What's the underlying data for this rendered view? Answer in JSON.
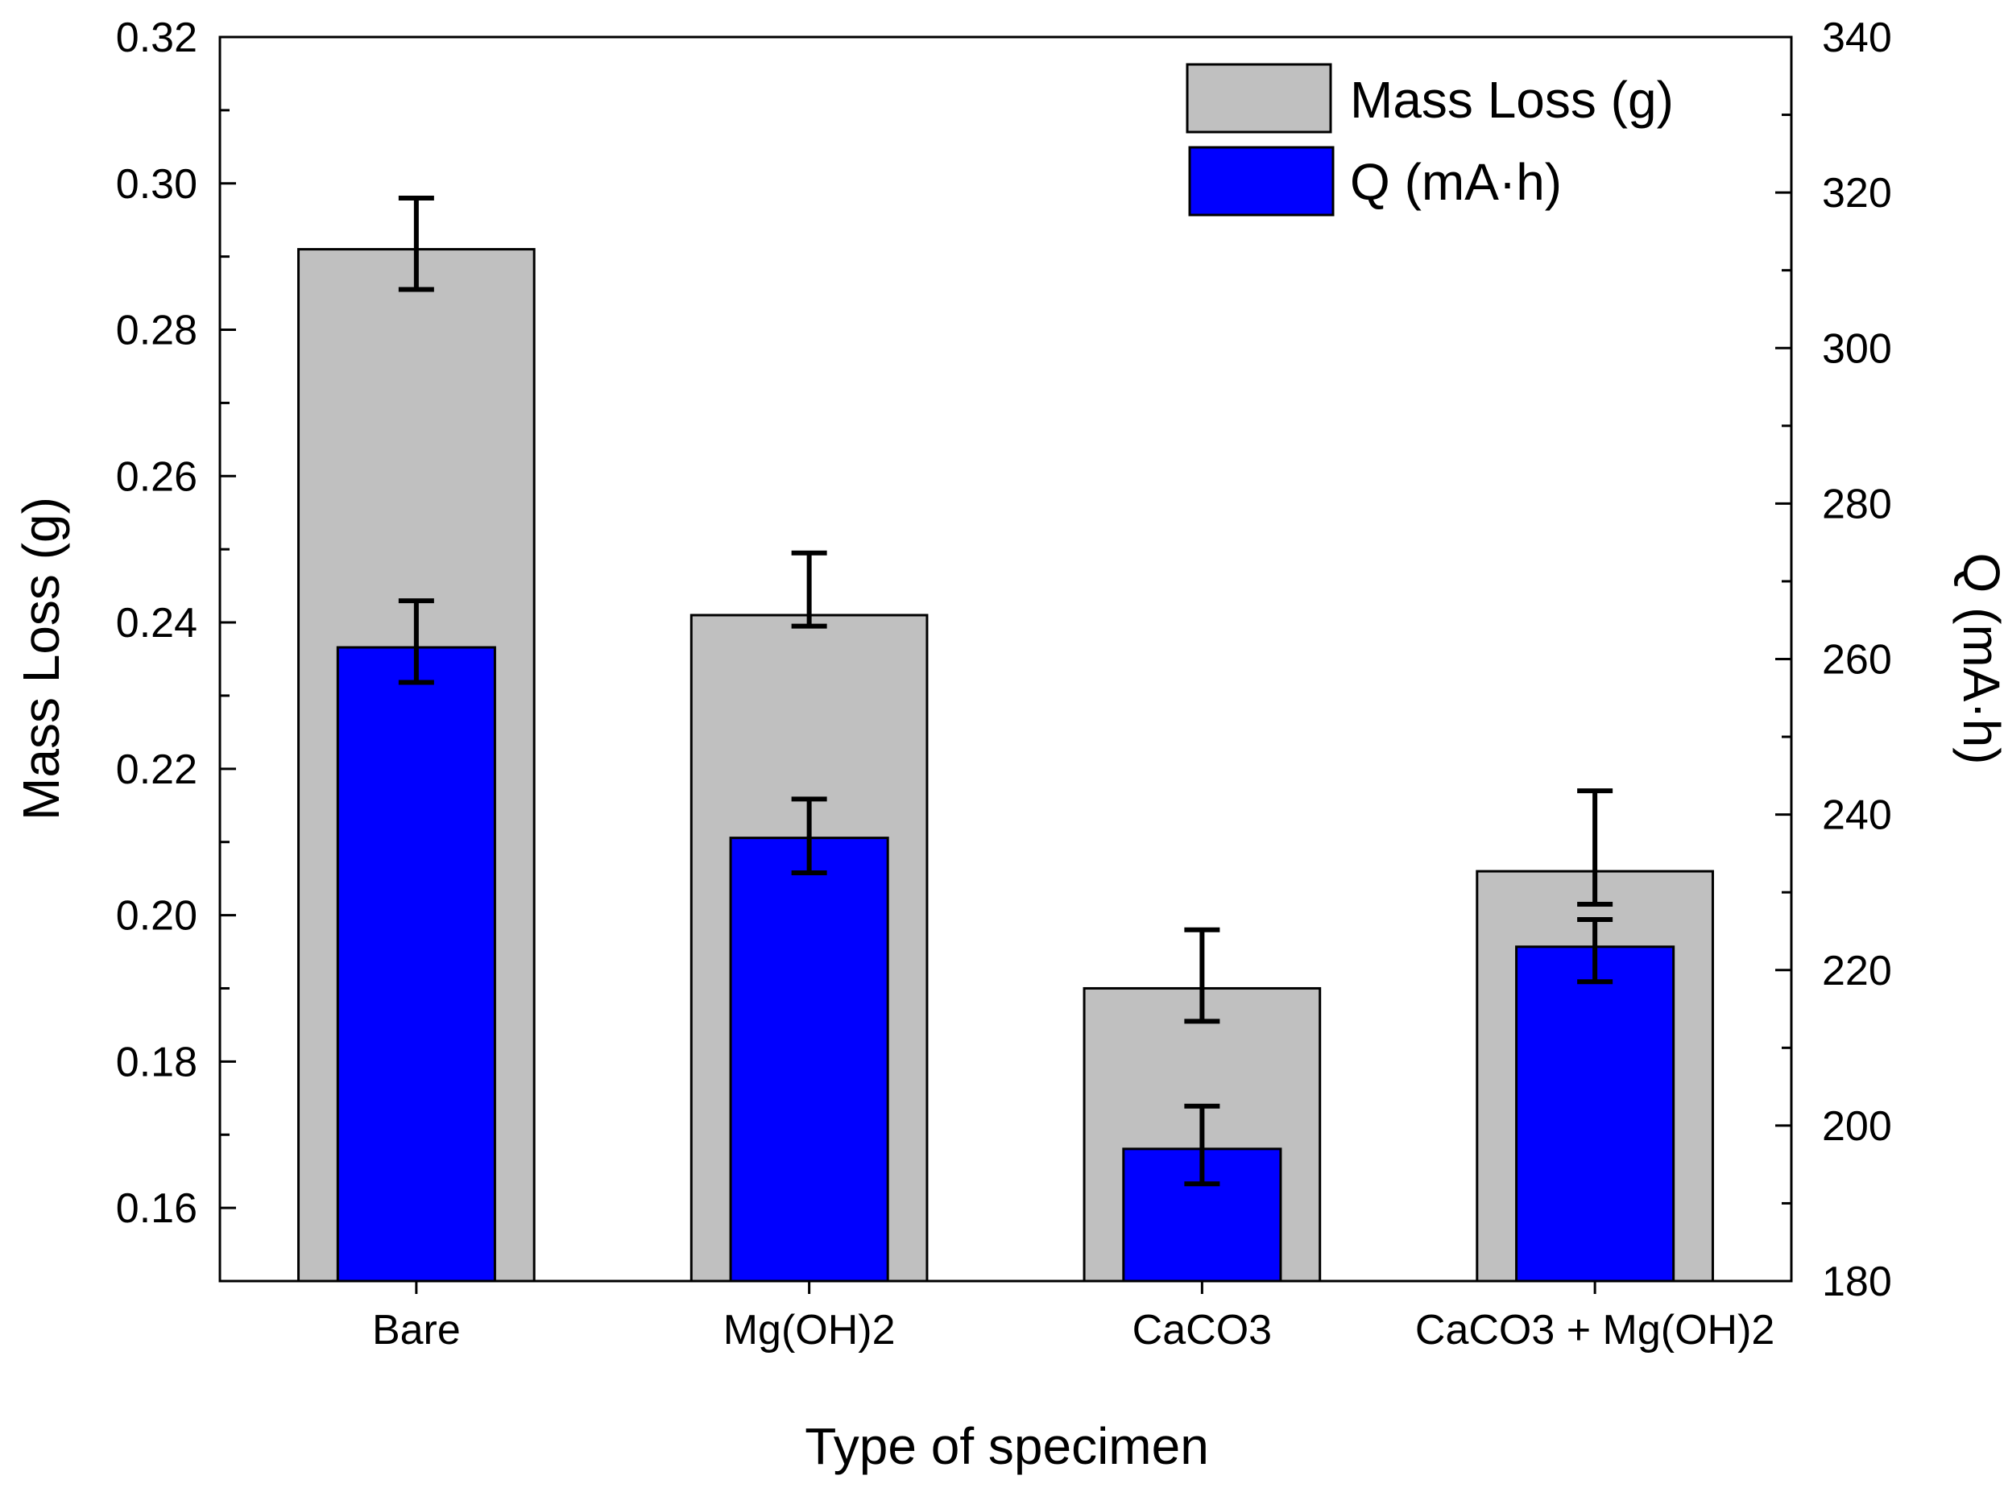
{
  "chart_data": {
    "type": "bar",
    "xlabel": "Type of specimen",
    "categories": [
      "Bare",
      "Mg(OH)2",
      "CaCO3",
      "CaCO3 + Mg(OH)2"
    ],
    "y_left": {
      "label": "Mass Loss (g)",
      "range": [
        0.15,
        0.32
      ],
      "ticks": [
        "0.16",
        "0.18",
        "0.20",
        "0.22",
        "0.24",
        "0.26",
        "0.28",
        "0.30",
        "0.32"
      ],
      "minor_step": 0.01
    },
    "y_right": {
      "label": "Q (mA·h)",
      "range": [
        180,
        340
      ],
      "ticks": [
        "180",
        "200",
        "220",
        "240",
        "260",
        "280",
        "300",
        "320",
        "340"
      ],
      "minor_step": 10
    },
    "series": [
      {
        "name": "Mass Loss (g)",
        "axis": "left",
        "color": "#c0c0c0",
        "values": [
          0.291,
          0.241,
          0.19,
          0.206
        ],
        "errors_low": [
          0.2855,
          0.2395,
          0.1855,
          0.2015
        ],
        "errors_high": [
          0.298,
          0.2495,
          0.198,
          0.217
        ]
      },
      {
        "name": "Q (mA·h)",
        "axis": "right",
        "color": "#0000ff",
        "values": [
          261.5,
          237,
          197,
          223
        ],
        "errors_low": [
          257,
          232.5,
          192.5,
          218.5
        ],
        "errors_high": [
          267.5,
          242,
          202.5,
          226.5
        ]
      }
    ],
    "legend": {
      "position": "top-right",
      "entries": [
        "Mass Loss (g)",
        "Q (mA·h)"
      ]
    }
  }
}
